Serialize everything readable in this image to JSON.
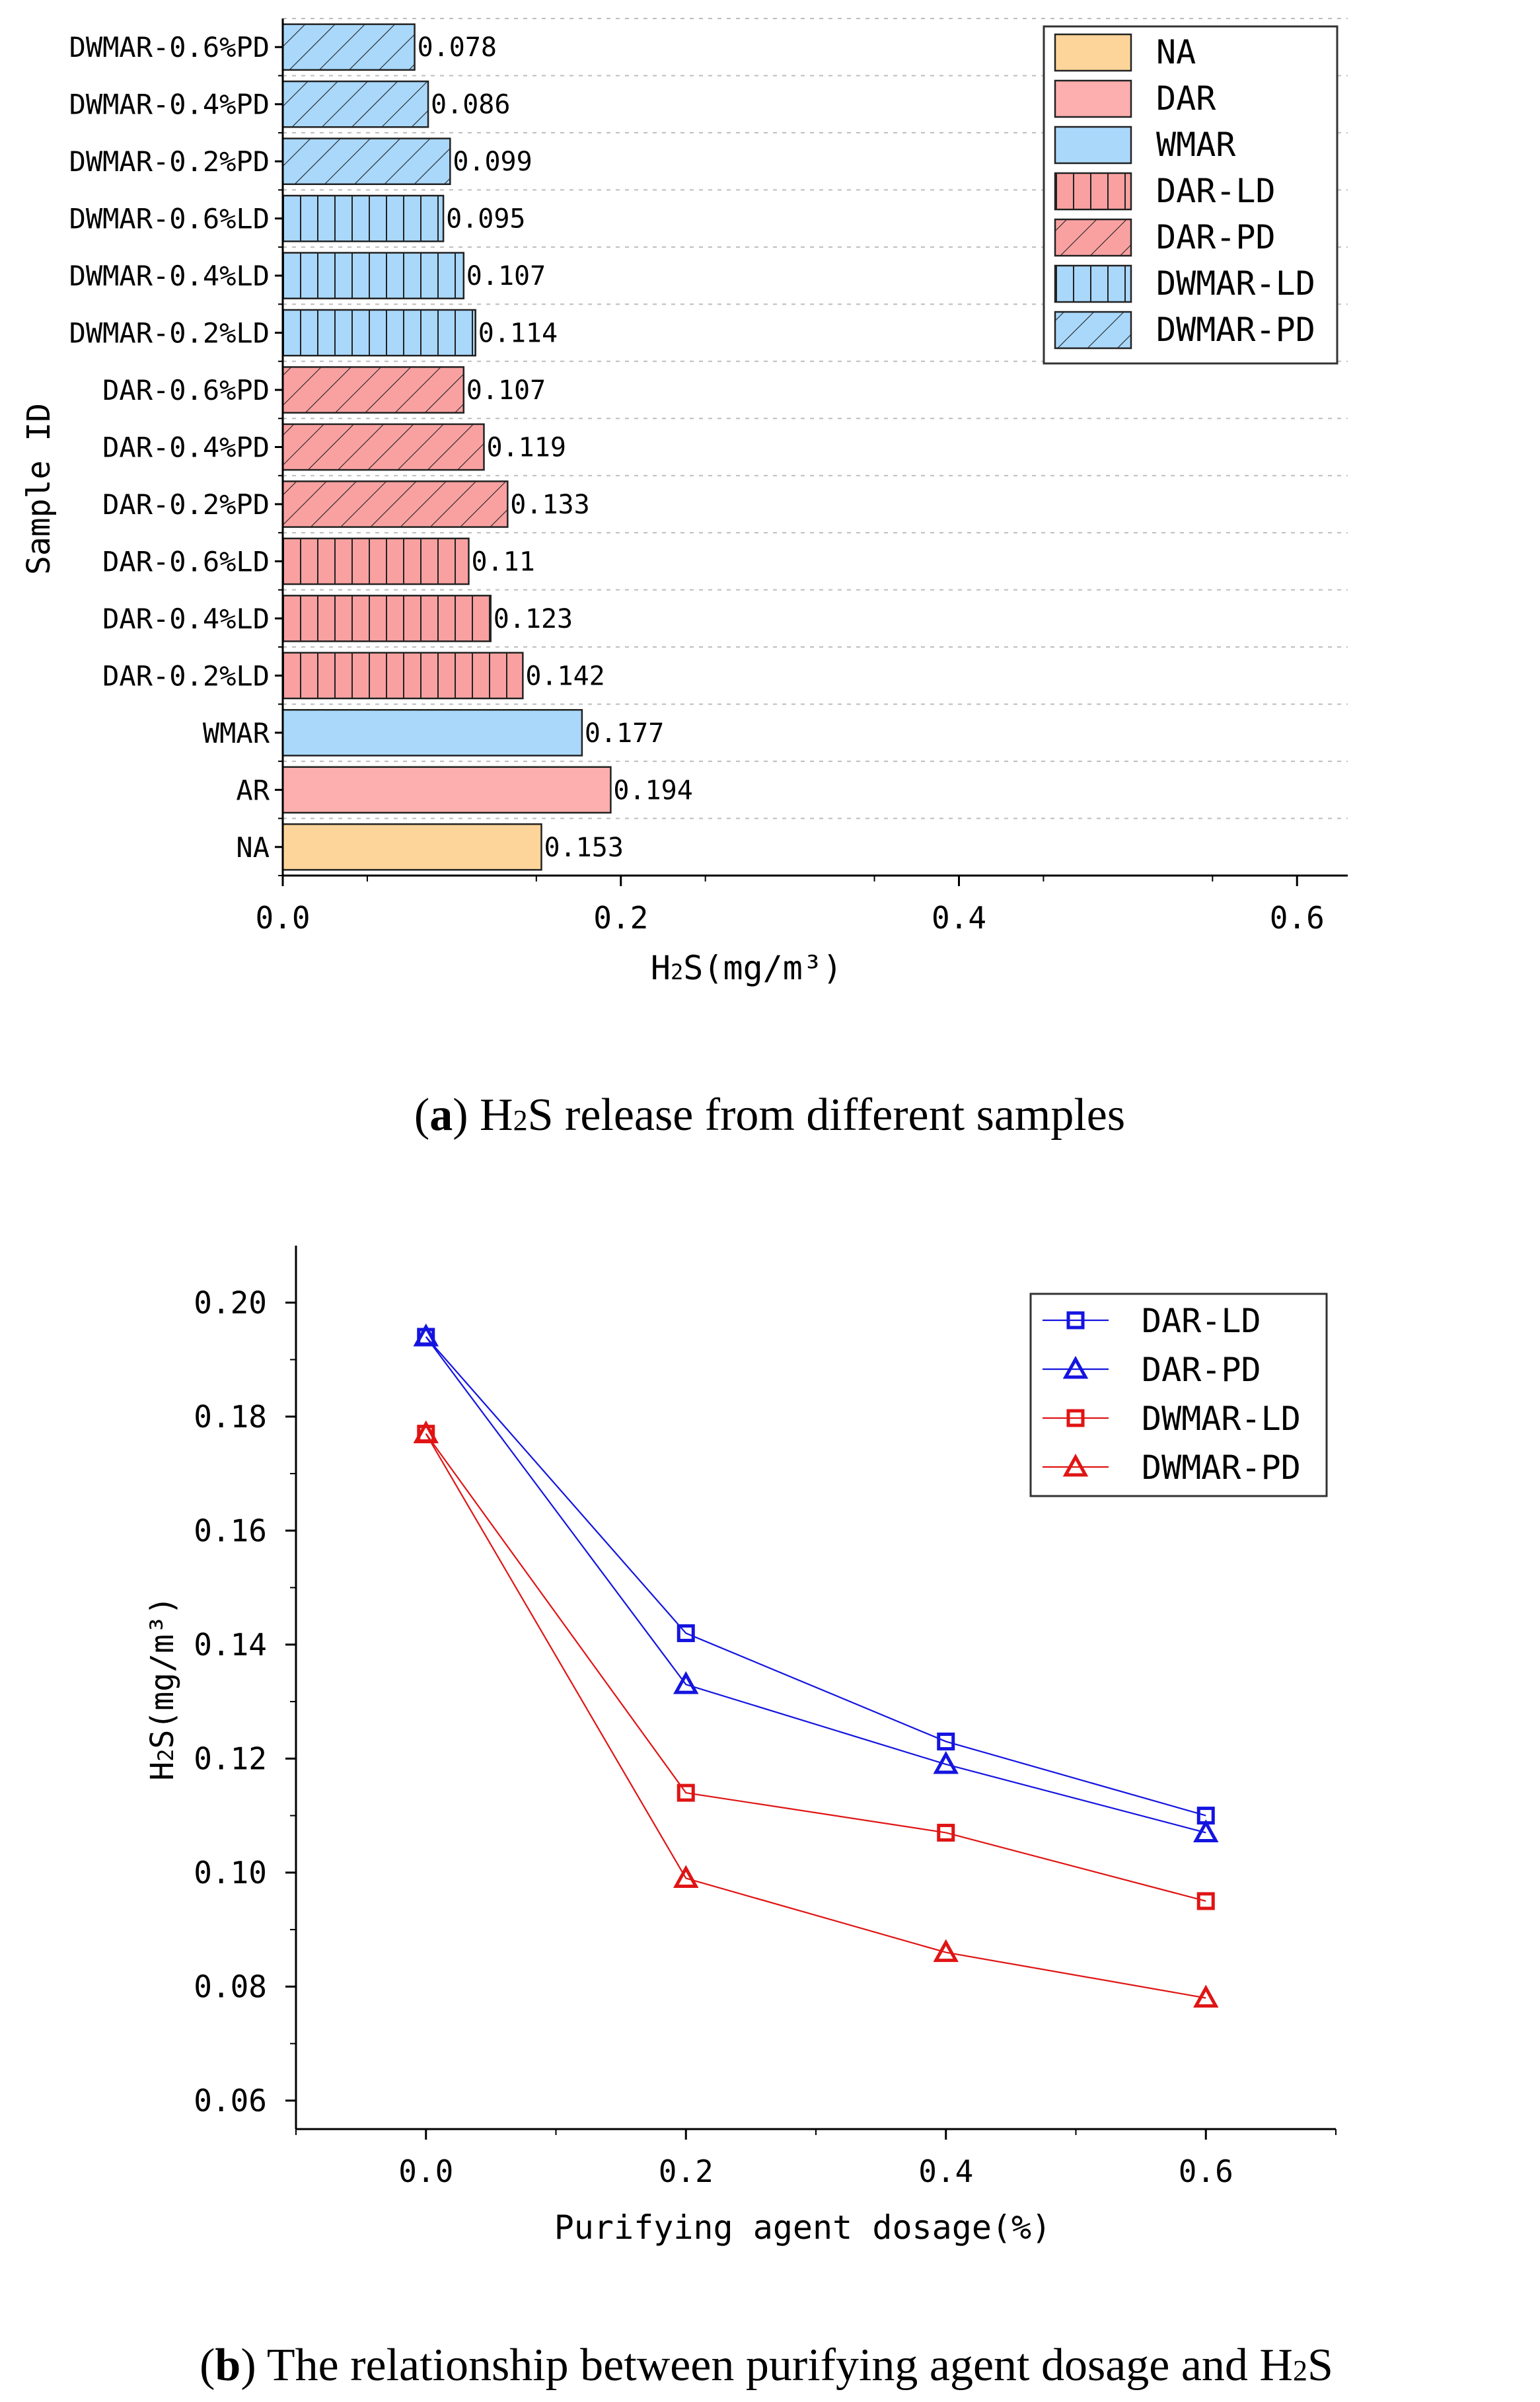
{
  "colors": {
    "na": "#FDD49A",
    "dar": "#FDAEAE",
    "wmar": "#A9D8FB",
    "dar_ld": "#F9A1A1",
    "dwmar_ld": "#A9D8FB",
    "blue_line": "#1414E0",
    "red_line": "#E01414"
  },
  "chart_data": [
    {
      "type": "bar",
      "orientation": "horizontal",
      "title": "",
      "xlabel_main": "H",
      "xlabel_sub": "2",
      "xlabel_rest": "S(mg/m³)",
      "ylabel": "Sample ID",
      "xlim": [
        0,
        0.63
      ],
      "xticks": [
        "0.0",
        "0.2",
        "0.4",
        "0.6"
      ],
      "xtick_values": [
        0,
        0.2,
        0.4,
        0.6
      ],
      "categories": [
        "NA",
        "AR",
        "WMAR",
        "DAR-0.2%LD",
        "DAR-0.4%LD",
        "DAR-0.6%LD",
        "DAR-0.2%PD",
        "DAR-0.4%PD",
        "DAR-0.6%PD",
        "DWMAR-0.2%LD",
        "DWMAR-0.4%LD",
        "DWMAR-0.6%LD",
        "DWMAR-0.2%PD",
        "DWMAR-0.4%PD",
        "DWMAR-0.6%PD"
      ],
      "values": [
        0.153,
        0.194,
        0.177,
        0.142,
        0.123,
        0.11,
        0.133,
        0.119,
        0.107,
        0.114,
        0.107,
        0.095,
        0.099,
        0.086,
        0.078
      ],
      "value_labels": [
        "0.153",
        "0.194",
        "0.177",
        "0.142",
        "0.123",
        "0.11",
        "0.133",
        "0.119",
        "0.107",
        "0.114",
        "0.107",
        "0.095",
        "0.099",
        "0.086",
        "0.078"
      ],
      "groups": [
        "NA",
        "DAR",
        "WMAR",
        "DAR-LD",
        "DAR-LD",
        "DAR-LD",
        "DAR-PD",
        "DAR-PD",
        "DAR-PD",
        "DWMAR-LD",
        "DWMAR-LD",
        "DWMAR-LD",
        "DWMAR-PD",
        "DWMAR-PD",
        "DWMAR-PD"
      ],
      "legend": [
        "NA",
        "DAR",
        "WMAR",
        "DAR-LD",
        "DAR-PD",
        "DWMAR-LD",
        "DWMAR-PD"
      ],
      "legend_position": "top-right",
      "caption_label": "a",
      "caption_pre": "H",
      "caption_sub": "2",
      "caption_rest": "S release from different samples"
    },
    {
      "type": "line",
      "title": "",
      "xlabel": "Purifying agent dosage(%)",
      "ylabel_main": "H",
      "ylabel_sub": "2",
      "ylabel_rest": "S(mg/m³)",
      "xlim": [
        -0.1,
        0.7
      ],
      "ylim": [
        0.055,
        0.21
      ],
      "xticks": [
        "0.0",
        "0.2",
        "0.4",
        "0.6"
      ],
      "xtick_values": [
        0,
        0.2,
        0.4,
        0.6
      ],
      "yticks": [
        "0.06",
        "0.08",
        "0.10",
        "0.12",
        "0.14",
        "0.16",
        "0.18",
        "0.20"
      ],
      "ytick_values": [
        0.06,
        0.08,
        0.1,
        0.12,
        0.14,
        0.16,
        0.18,
        0.2
      ],
      "x": [
        0,
        0.2,
        0.4,
        0.6
      ],
      "series": [
        {
          "name": "DAR-LD",
          "values": [
            0.194,
            0.142,
            0.123,
            0.11
          ],
          "marker": "square",
          "color": "blue"
        },
        {
          "name": "DAR-PD",
          "values": [
            0.194,
            0.133,
            0.119,
            0.107
          ],
          "marker": "triangle",
          "color": "blue"
        },
        {
          "name": "DWMAR-LD",
          "values": [
            0.177,
            0.114,
            0.107,
            0.095
          ],
          "marker": "square",
          "color": "red"
        },
        {
          "name": "DWMAR-PD",
          "values": [
            0.177,
            0.099,
            0.086,
            0.078
          ],
          "marker": "triangle",
          "color": "red"
        }
      ],
      "legend_position": "top-right",
      "caption_label": "b",
      "caption_pre": "The relationship between purifying agent dosage and H",
      "caption_sub": "2",
      "caption_rest": "S"
    }
  ]
}
